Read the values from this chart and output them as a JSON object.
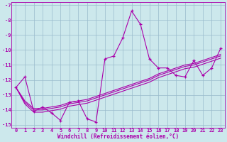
{
  "xlabel": "Windchill (Refroidissement éolien,°C)",
  "bg_color": "#cce8ec",
  "line_color": "#aa00aa",
  "grid_color": "#99bbcc",
  "x_data": [
    0,
    1,
    2,
    3,
    4,
    5,
    6,
    7,
    8,
    9,
    10,
    11,
    12,
    13,
    14,
    15,
    16,
    17,
    18,
    19,
    20,
    21,
    22,
    23
  ],
  "y_main": [
    -12.5,
    -11.8,
    -14.1,
    -13.8,
    -14.2,
    -14.7,
    -13.5,
    -13.4,
    -14.6,
    -14.8,
    -10.6,
    -10.4,
    -9.2,
    -7.4,
    -8.3,
    -10.6,
    -11.2,
    -11.2,
    -11.7,
    -11.8,
    -10.7,
    -11.7,
    -11.2,
    -9.9
  ],
  "y_line1": [
    -12.5,
    -13.5,
    -14.0,
    -14.0,
    -13.9,
    -13.8,
    -13.6,
    -13.5,
    -13.4,
    -13.2,
    -13.0,
    -12.8,
    -12.6,
    -12.4,
    -12.2,
    -12.0,
    -11.7,
    -11.5,
    -11.3,
    -11.1,
    -11.0,
    -10.8,
    -10.6,
    -10.4
  ],
  "y_line2": [
    -12.5,
    -13.6,
    -14.15,
    -14.15,
    -14.05,
    -13.95,
    -13.75,
    -13.65,
    -13.55,
    -13.35,
    -13.15,
    -12.95,
    -12.75,
    -12.55,
    -12.35,
    -12.15,
    -11.85,
    -11.65,
    -11.45,
    -11.25,
    -11.15,
    -10.95,
    -10.75,
    -10.55
  ],
  "y_line3": [
    -12.5,
    -13.4,
    -13.9,
    -13.9,
    -13.8,
    -13.7,
    -13.5,
    -13.4,
    -13.3,
    -13.1,
    -12.9,
    -12.7,
    -12.5,
    -12.3,
    -12.1,
    -11.9,
    -11.6,
    -11.4,
    -11.2,
    -11.0,
    -10.9,
    -10.7,
    -10.5,
    -10.3
  ],
  "ylim": [
    -15.2,
    -6.8
  ],
  "xlim": [
    -0.5,
    23.5
  ],
  "yticks": [
    -15,
    -14,
    -13,
    -12,
    -11,
    -10,
    -9,
    -8,
    -7
  ],
  "xticks": [
    0,
    1,
    2,
    3,
    4,
    5,
    6,
    7,
    8,
    9,
    10,
    11,
    12,
    13,
    14,
    15,
    16,
    17,
    18,
    19,
    20,
    21,
    22,
    23
  ],
  "tick_fontsize": 5.0,
  "xlabel_fontsize": 5.5,
  "lw": 0.8
}
